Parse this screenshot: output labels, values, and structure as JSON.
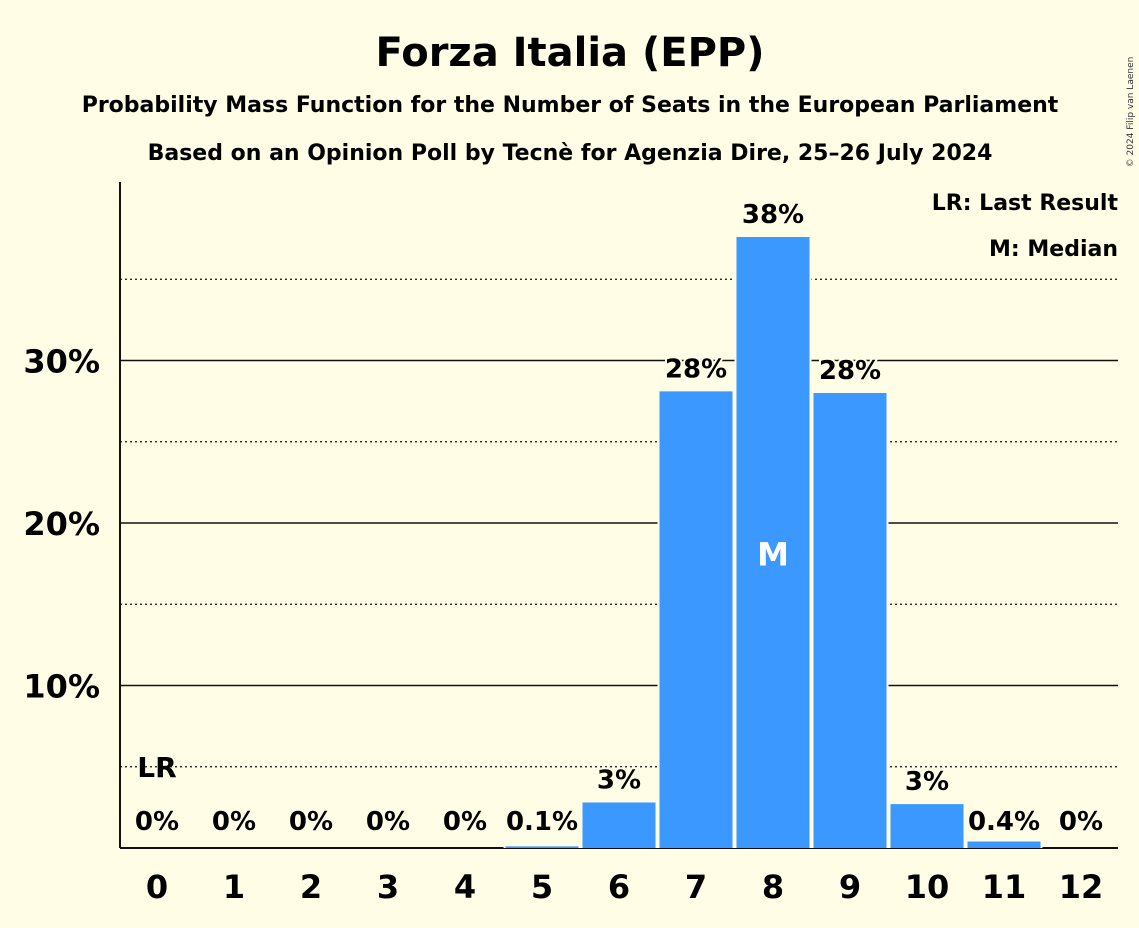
{
  "chart_data": {
    "type": "bar",
    "title": "Forza Italia (EPP)",
    "subtitle1": "Probability Mass Function for the Number of Seats in the European Parliament",
    "subtitle2": "Based on an Opinion Poll by Tecnè for Agenzia Dire, 25–26 July 2024",
    "copyright": "© 2024 Filip van Laenen",
    "categories": [
      "0",
      "1",
      "2",
      "3",
      "4",
      "5",
      "6",
      "7",
      "8",
      "9",
      "10",
      "11",
      "12"
    ],
    "values": [
      0,
      0,
      0,
      0,
      0,
      0.1,
      2.8,
      28.1,
      37.6,
      28.0,
      2.7,
      0.4,
      0
    ],
    "data_labels": [
      "0%",
      "0%",
      "0%",
      "0%",
      "0%",
      "0.1%",
      "3%",
      "28%",
      "38%",
      "28%",
      "3%",
      "0.4%",
      "0%"
    ],
    "ylim": [
      0,
      40
    ],
    "yticks": [
      10,
      20,
      30
    ],
    "ytick_labels": [
      "10%",
      "20%",
      "30%"
    ],
    "minor_gridlines": [
      5,
      15,
      25,
      35
    ],
    "bar_color": "#3a98fe",
    "last_result_index": 0,
    "last_result_label": "LR",
    "median_index": 8,
    "median_label": "M",
    "legend": [
      "LR: Last Result",
      "M: Median"
    ],
    "legend_position": "top-right"
  }
}
